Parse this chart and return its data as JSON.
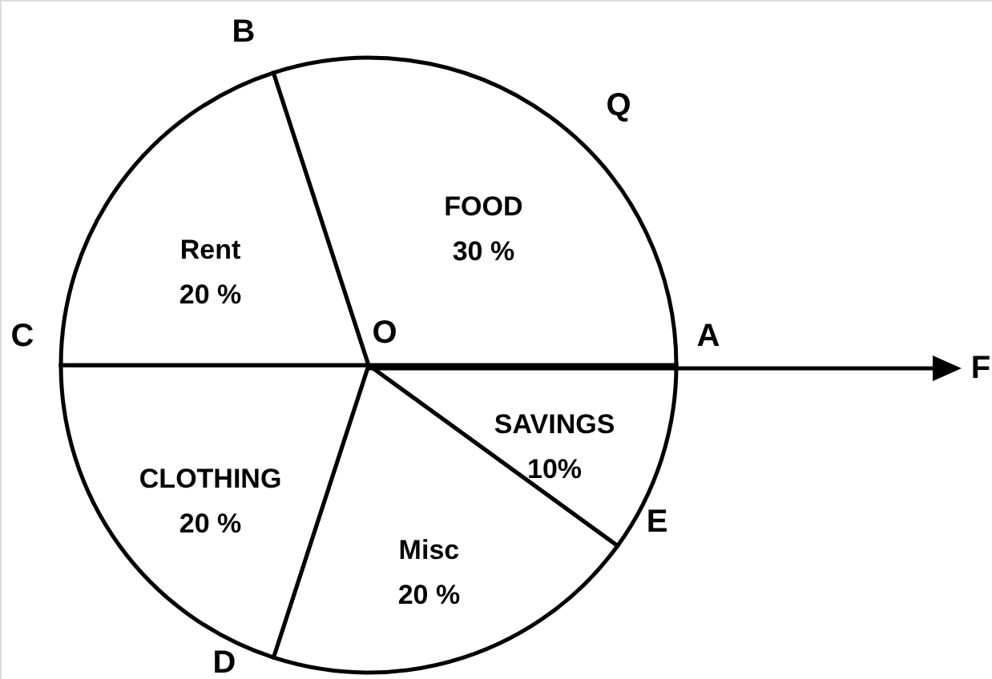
{
  "chart_data": {
    "type": "pie",
    "categories": [
      "SAVINGS",
      "Misc",
      "CLOTHING",
      "Rent",
      "FOOD"
    ],
    "values": [
      10,
      20,
      20,
      20,
      30
    ],
    "colors": [
      "#ffffff",
      "#ffffff",
      "#ffffff",
      "#ffffff",
      "#ffffff"
    ],
    "value_labels": [
      "10%",
      "20 %",
      "20 %",
      "20 %",
      "30 %"
    ],
    "annotations": [
      "B",
      "Q",
      "C",
      "O",
      "A",
      "F",
      "E",
      "D"
    ]
  }
}
